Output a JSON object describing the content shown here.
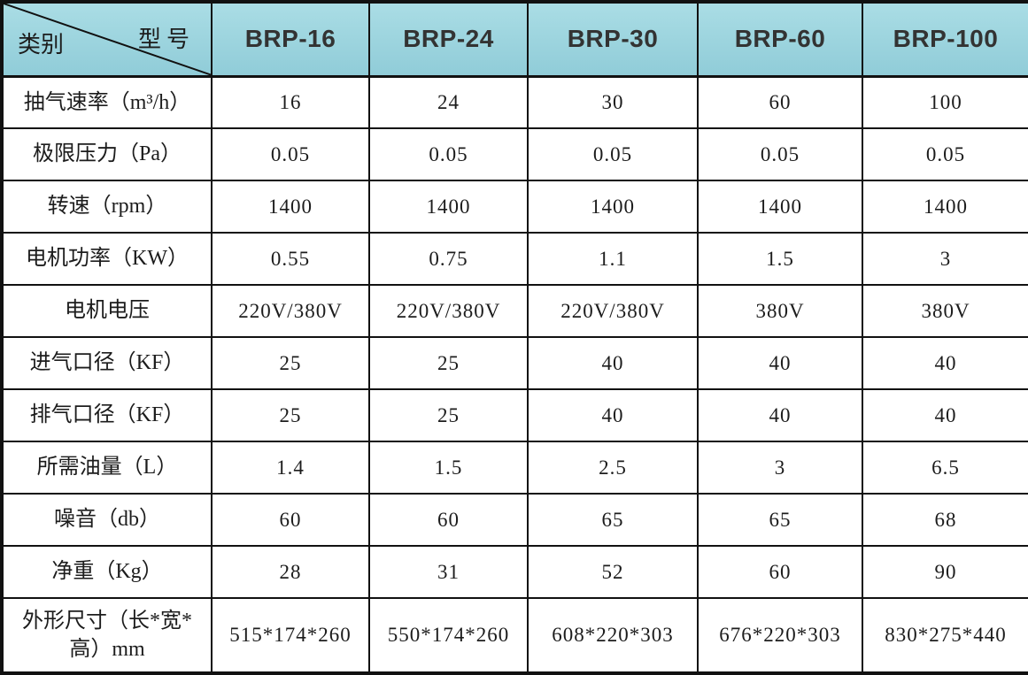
{
  "table": {
    "corner": {
      "category_label": "类别",
      "model_label": "型号"
    },
    "models": [
      "BRP-16",
      "BRP-24",
      "BRP-30",
      "BRP-60",
      "BRP-100"
    ],
    "rows": [
      {
        "label": "抽气速率（m³/h）",
        "values": [
          "16",
          "24",
          "30",
          "60",
          "100"
        ]
      },
      {
        "label": "极限压力（Pa）",
        "values": [
          "0.05",
          "0.05",
          "0.05",
          "0.05",
          "0.05"
        ]
      },
      {
        "label": "转速（rpm）",
        "values": [
          "1400",
          "1400",
          "1400",
          "1400",
          "1400"
        ]
      },
      {
        "label": "电机功率（KW）",
        "values": [
          "0.55",
          "0.75",
          "1.1",
          "1.5",
          "3"
        ]
      },
      {
        "label": "电机电压",
        "values": [
          "220V/380V",
          "220V/380V",
          "220V/380V",
          "380V",
          "380V"
        ]
      },
      {
        "label": "进气口径（KF）",
        "values": [
          "25",
          "25",
          "40",
          "40",
          "40"
        ]
      },
      {
        "label": "排气口径（KF）",
        "values": [
          "25",
          "25",
          "40",
          "40",
          "40"
        ]
      },
      {
        "label": "所需油量（L）",
        "values": [
          "1.4",
          "1.5",
          "2.5",
          "3",
          "6.5"
        ]
      },
      {
        "label": "噪音（db）",
        "values": [
          "60",
          "60",
          "65",
          "65",
          "68"
        ]
      },
      {
        "label": "净重（Kg）",
        "values": [
          "28",
          "31",
          "52",
          "60",
          "90"
        ]
      },
      {
        "label": "外形尺寸（长*宽*高）mm",
        "values": [
          "515*174*260",
          "550*174*260",
          "608*220*303",
          "676*220*303",
          "830*275*440"
        ]
      }
    ],
    "colors": {
      "header_bg_top": "#aadde5",
      "header_bg_bottom": "#90ccd8",
      "border": "#111111",
      "header_text": "#333333",
      "cell_text": "#1c1c1c"
    }
  }
}
